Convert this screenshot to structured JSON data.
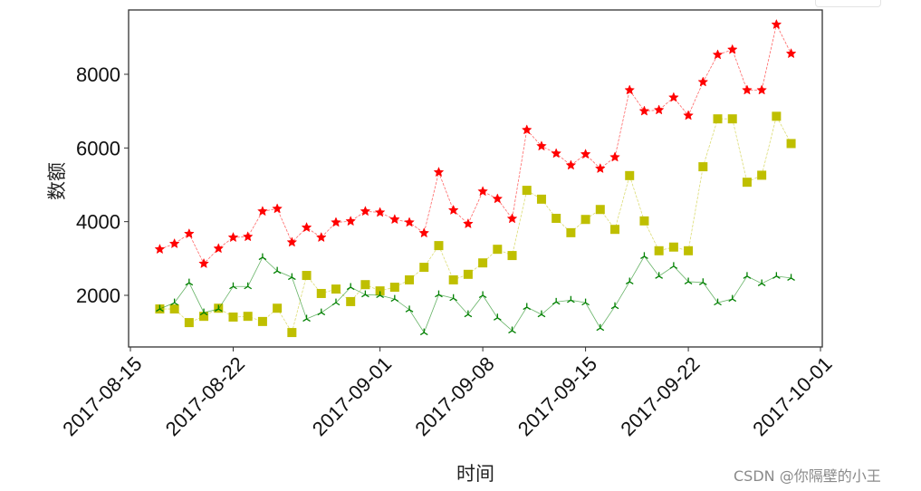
{
  "chart_data": {
    "type": "line",
    "title": "",
    "xlabel": "时间",
    "ylabel": "数额",
    "xlim": [
      "2017-08-15",
      "2017-10-01"
    ],
    "ylim": [
      600,
      9750
    ],
    "grid": false,
    "legend": null,
    "x_ticks": [
      "2017-08-15",
      "2017-08-22",
      "2017-09-01",
      "2017-09-08",
      "2017-09-15",
      "2017-09-22",
      "2017-10-01"
    ],
    "y_ticks": [
      2000,
      4000,
      6000,
      8000
    ],
    "x": [
      "2017-08-17",
      "2017-08-18",
      "2017-08-19",
      "2017-08-20",
      "2017-08-21",
      "2017-08-22",
      "2017-08-23",
      "2017-08-24",
      "2017-08-25",
      "2017-08-26",
      "2017-08-27",
      "2017-08-28",
      "2017-08-29",
      "2017-08-30",
      "2017-08-31",
      "2017-09-01",
      "2017-09-02",
      "2017-09-03",
      "2017-09-04",
      "2017-09-05",
      "2017-09-06",
      "2017-09-07",
      "2017-09-08",
      "2017-09-09",
      "2017-09-10",
      "2017-09-11",
      "2017-09-12",
      "2017-09-13",
      "2017-09-14",
      "2017-09-15",
      "2017-09-16",
      "2017-09-17",
      "2017-09-18",
      "2017-09-19",
      "2017-09-20",
      "2017-09-21",
      "2017-09-22",
      "2017-09-23",
      "2017-09-24",
      "2017-09-25",
      "2017-09-26",
      "2017-09-27",
      "2017-09-28",
      "2017-09-29"
    ],
    "series": [
      {
        "name": "red-star-series",
        "color": "#ff0000",
        "marker": "star",
        "linestyle": "dashed",
        "values": [
          3250,
          3400,
          3670,
          2860,
          3270,
          3570,
          3590,
          4280,
          4350,
          3440,
          3840,
          3570,
          3980,
          4010,
          4280,
          4250,
          4060,
          3980,
          3690,
          5340,
          4310,
          3940,
          4820,
          4620,
          4080,
          6490,
          6050,
          5850,
          5530,
          5830,
          5440,
          5750,
          7570,
          7000,
          7030,
          7370,
          6880,
          7790,
          8530,
          8670,
          7570,
          7570,
          9350,
          8560
        ]
      },
      {
        "name": "yellow-square-series",
        "color": "#bfbf00",
        "marker": "square",
        "linestyle": "dashed",
        "values": [
          1630,
          1630,
          1260,
          1430,
          1650,
          1410,
          1430,
          1290,
          1650,
          990,
          2540,
          2050,
          2170,
          1830,
          2290,
          2120,
          2220,
          2420,
          2760,
          3350,
          2420,
          2570,
          2880,
          3250,
          3080,
          4850,
          4610,
          4090,
          3700,
          4060,
          4330,
          3790,
          5250,
          4020,
          3210,
          3310,
          3210,
          5490,
          6790,
          6790,
          5070,
          5260,
          6860,
          6120
        ]
      },
      {
        "name": "green-triangle-series",
        "color": "#008000",
        "marker": "tri_up",
        "linestyle": "solid",
        "values": [
          1630,
          1800,
          2340,
          1530,
          1630,
          2240,
          2240,
          3030,
          2660,
          2490,
          1360,
          1530,
          1800,
          2220,
          2020,
          2000,
          1900,
          1610,
          990,
          2020,
          1920,
          1480,
          2000,
          1390,
          1040,
          1680,
          1480,
          1820,
          1870,
          1800,
          1110,
          1700,
          2370,
          3060,
          2520,
          2790,
          2370,
          2350,
          1800,
          1900,
          2520,
          2320,
          2520,
          2470
        ]
      }
    ]
  },
  "axes": {
    "xlabel": "时间",
    "ylabel": "数额"
  },
  "watermark": "CSDN @你隔壁的小王"
}
